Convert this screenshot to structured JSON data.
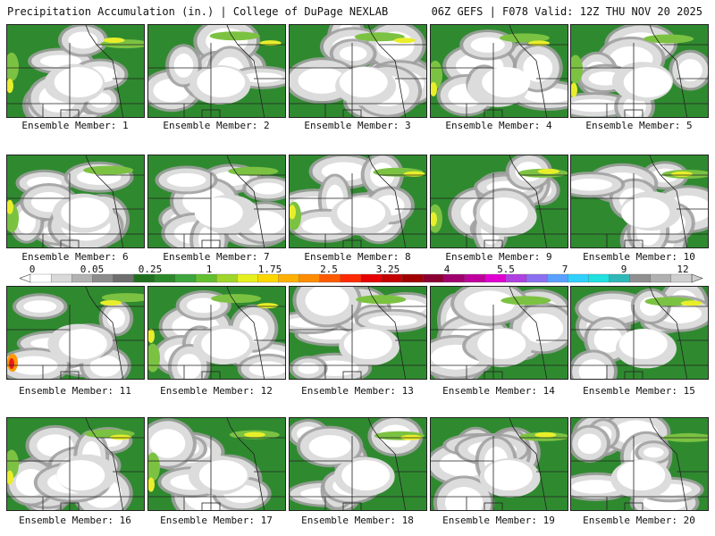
{
  "header": {
    "left": "Precipitation Accumulation (in.) | College of DuPage NEXLAB",
    "right": "06Z GEFS | F078 Valid: 12Z THU NOV 20 2025"
  },
  "panels": [
    {
      "label": "Ensemble Member: 1"
    },
    {
      "label": "Ensemble Member: 2"
    },
    {
      "label": "Ensemble Member: 3"
    },
    {
      "label": "Ensemble Member: 4"
    },
    {
      "label": "Ensemble Member: 5"
    },
    {
      "label": "Ensemble Member: 6"
    },
    {
      "label": "Ensemble Member: 7"
    },
    {
      "label": "Ensemble Member: 8"
    },
    {
      "label": "Ensemble Member: 9"
    },
    {
      "label": "Ensemble Member: 10"
    },
    {
      "label": "Ensemble Member: 11"
    },
    {
      "label": "Ensemble Member: 12"
    },
    {
      "label": "Ensemble Member: 13"
    },
    {
      "label": "Ensemble Member: 14"
    },
    {
      "label": "Ensemble Member: 15"
    },
    {
      "label": "Ensemble Member: 16"
    },
    {
      "label": "Ensemble Member: 17"
    },
    {
      "label": "Ensemble Member: 18"
    },
    {
      "label": "Ensemble Member: 19"
    },
    {
      "label": "Ensemble Member: 20"
    }
  ],
  "colorbar": {
    "tick_labels": [
      "0",
      "0.05",
      "0.25",
      "1",
      "1.75",
      "2.5",
      "3.25",
      "4",
      "5.5",
      "7",
      "9",
      "12"
    ],
    "colors": [
      "#ffffff",
      "#d9d9d9",
      "#b3b3b3",
      "#8c8c8c",
      "#6e6e6e",
      "#1f6f1f",
      "#2a8a2a",
      "#3ea53e",
      "#62bf2f",
      "#9fd629",
      "#e6f01e",
      "#ffd700",
      "#ffb000",
      "#ff8c00",
      "#ff5a00",
      "#ff2a00",
      "#e60000",
      "#c40000",
      "#a00000",
      "#8a0033",
      "#a0006e",
      "#c0009c",
      "#e000d0",
      "#b040e0",
      "#8a70f0",
      "#5aa0ff",
      "#30d0ff",
      "#20e0e0",
      "#30b8b8",
      "#909090",
      "#b0b0b0",
      "#cfcfcf"
    ]
  },
  "palette": {
    "dry": "#ffffff",
    "trace_light": "#dcdcdc",
    "trace_dark": "#a0a0a0",
    "green": "#2f8a2f",
    "light_green": "#7cc242",
    "yellow": "#e8ef2a",
    "orange": "#ff9900",
    "red": "#e81c1c"
  }
}
